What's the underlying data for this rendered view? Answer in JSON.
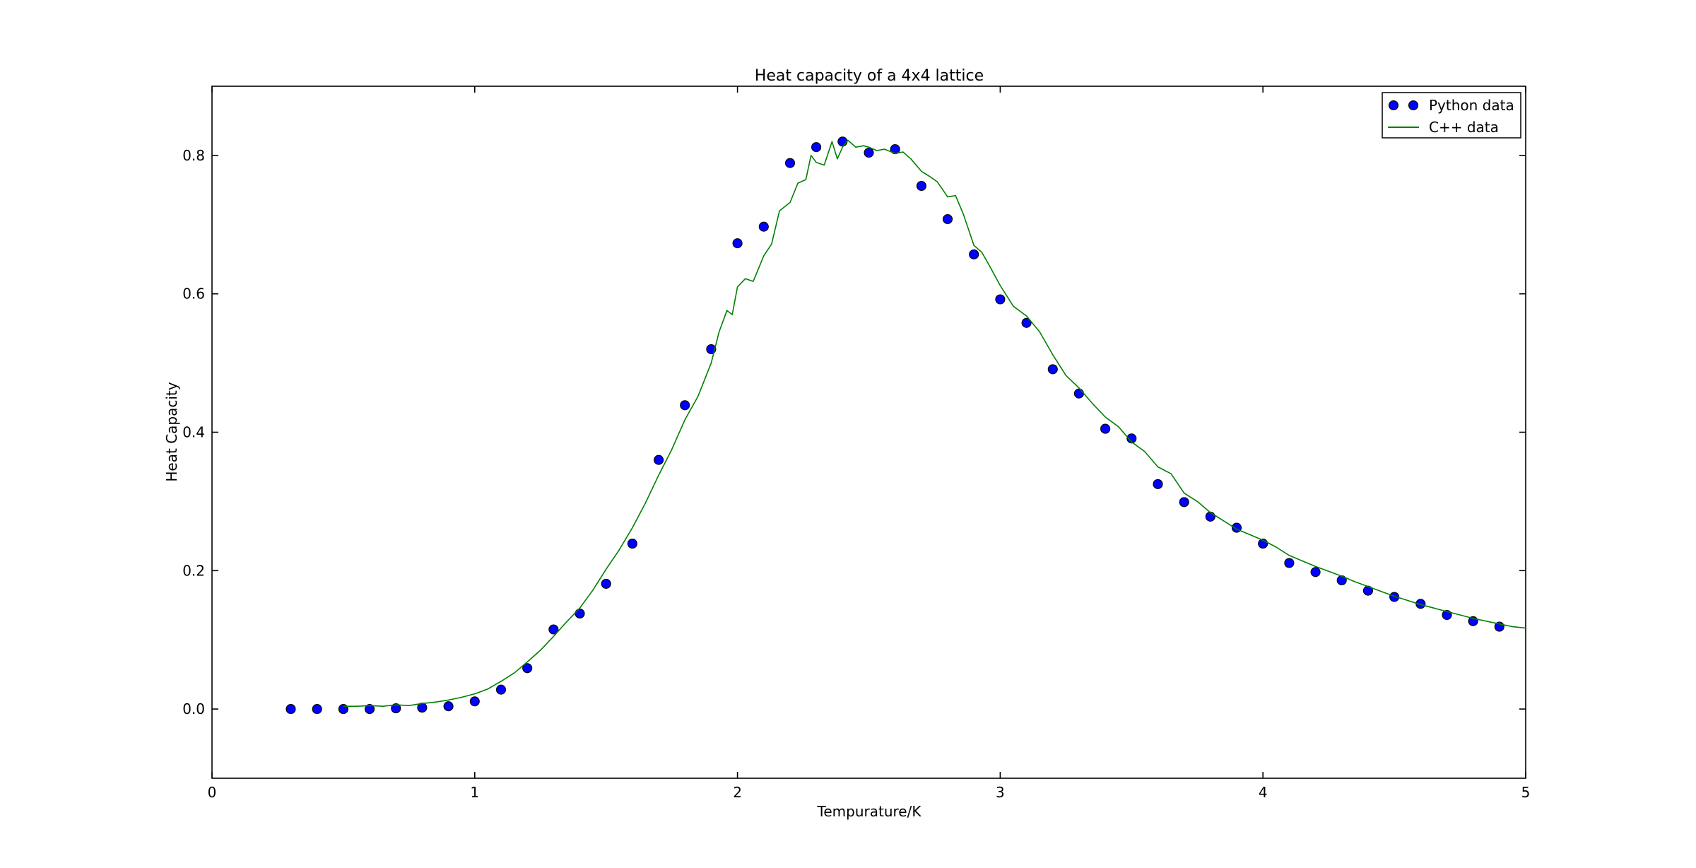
{
  "figure": {
    "background": "#ffffff",
    "spine_color": "#000000"
  },
  "chart_data": {
    "type": "scatter",
    "title": "Heat capacity of a 4x4 lattice",
    "xlabel": "Tempurature/K",
    "ylabel": "Heat Capacity",
    "xlim": [
      0,
      5
    ],
    "ylim": [
      -0.1,
      0.9
    ],
    "x_ticks": [
      0,
      1,
      2,
      3,
      4,
      5
    ],
    "x_tick_labels": [
      "0",
      "1",
      "2",
      "3",
      "4",
      "5"
    ],
    "y_ticks": [
      0.0,
      0.2,
      0.4,
      0.6,
      0.8
    ],
    "y_tick_labels": [
      "0.0",
      "0.2",
      "0.4",
      "0.6",
      "0.8"
    ],
    "grid": false,
    "legend_position": "upper right",
    "series": [
      {
        "name": "Python data",
        "type": "scatter",
        "color": "#0000ff",
        "marker": "circle",
        "marker_edge_color": "#000000",
        "points": [
          [
            0.3,
            0.0
          ],
          [
            0.4,
            0.0
          ],
          [
            0.5,
            0.0
          ],
          [
            0.6,
            0.0
          ],
          [
            0.7,
            0.001
          ],
          [
            0.8,
            0.002
          ],
          [
            0.9,
            0.004
          ],
          [
            1.0,
            0.011
          ],
          [
            1.1,
            0.028
          ],
          [
            1.2,
            0.059
          ],
          [
            1.3,
            0.115
          ],
          [
            1.4,
            0.138
          ],
          [
            1.5,
            0.181
          ],
          [
            1.6,
            0.239
          ],
          [
            1.7,
            0.36
          ],
          [
            1.8,
            0.439
          ],
          [
            1.9,
            0.52
          ],
          [
            2.0,
            0.673
          ],
          [
            2.1,
            0.697
          ],
          [
            2.2,
            0.789
          ],
          [
            2.3,
            0.812
          ],
          [
            2.4,
            0.82
          ],
          [
            2.5,
            0.804
          ],
          [
            2.6,
            0.809
          ],
          [
            2.7,
            0.756
          ],
          [
            2.8,
            0.708
          ],
          [
            2.9,
            0.657
          ],
          [
            3.0,
            0.592
          ],
          [
            3.1,
            0.558
          ],
          [
            3.2,
            0.491
          ],
          [
            3.3,
            0.456
          ],
          [
            3.4,
            0.405
          ],
          [
            3.5,
            0.391
          ],
          [
            3.6,
            0.325
          ],
          [
            3.7,
            0.299
          ],
          [
            3.8,
            0.278
          ],
          [
            3.9,
            0.262
          ],
          [
            4.0,
            0.239
          ],
          [
            4.1,
            0.211
          ],
          [
            4.2,
            0.198
          ],
          [
            4.3,
            0.186
          ],
          [
            4.4,
            0.171
          ],
          [
            4.5,
            0.162
          ],
          [
            4.6,
            0.152
          ],
          [
            4.7,
            0.136
          ],
          [
            4.8,
            0.127
          ],
          [
            4.9,
            0.119
          ]
        ]
      },
      {
        "name": "C++ data",
        "type": "line",
        "color": "#008000",
        "points": [
          [
            0.5,
            0.004
          ],
          [
            0.55,
            0.004
          ],
          [
            0.6,
            0.005
          ],
          [
            0.65,
            0.004
          ],
          [
            0.7,
            0.006
          ],
          [
            0.75,
            0.005
          ],
          [
            0.8,
            0.008
          ],
          [
            0.85,
            0.01
          ],
          [
            0.9,
            0.013
          ],
          [
            0.95,
            0.017
          ],
          [
            1.0,
            0.022
          ],
          [
            1.05,
            0.029
          ],
          [
            1.1,
            0.04
          ],
          [
            1.15,
            0.052
          ],
          [
            1.2,
            0.068
          ],
          [
            1.25,
            0.085
          ],
          [
            1.3,
            0.105
          ],
          [
            1.35,
            0.126
          ],
          [
            1.4,
            0.146
          ],
          [
            1.45,
            0.172
          ],
          [
            1.5,
            0.202
          ],
          [
            1.55,
            0.23
          ],
          [
            1.6,
            0.262
          ],
          [
            1.65,
            0.298
          ],
          [
            1.7,
            0.338
          ],
          [
            1.75,
            0.375
          ],
          [
            1.8,
            0.418
          ],
          [
            1.85,
            0.452
          ],
          [
            1.9,
            0.5
          ],
          [
            1.93,
            0.545
          ],
          [
            1.96,
            0.576
          ],
          [
            1.98,
            0.57
          ],
          [
            2.0,
            0.61
          ],
          [
            2.03,
            0.622
          ],
          [
            2.06,
            0.618
          ],
          [
            2.1,
            0.655
          ],
          [
            2.13,
            0.672
          ],
          [
            2.16,
            0.72
          ],
          [
            2.2,
            0.732
          ],
          [
            2.23,
            0.76
          ],
          [
            2.26,
            0.765
          ],
          [
            2.28,
            0.8
          ],
          [
            2.3,
            0.79
          ],
          [
            2.33,
            0.786
          ],
          [
            2.36,
            0.82
          ],
          [
            2.38,
            0.795
          ],
          [
            2.4,
            0.812
          ],
          [
            2.42,
            0.822
          ],
          [
            2.45,
            0.812
          ],
          [
            2.48,
            0.814
          ],
          [
            2.5,
            0.812
          ],
          [
            2.53,
            0.807
          ],
          [
            2.56,
            0.809
          ],
          [
            2.6,
            0.803
          ],
          [
            2.63,
            0.805
          ],
          [
            2.66,
            0.795
          ],
          [
            2.7,
            0.777
          ],
          [
            2.73,
            0.77
          ],
          [
            2.76,
            0.762
          ],
          [
            2.8,
            0.74
          ],
          [
            2.83,
            0.742
          ],
          [
            2.86,
            0.715
          ],
          [
            2.9,
            0.67
          ],
          [
            2.93,
            0.66
          ],
          [
            2.96,
            0.64
          ],
          [
            3.0,
            0.612
          ],
          [
            3.05,
            0.582
          ],
          [
            3.1,
            0.568
          ],
          [
            3.15,
            0.545
          ],
          [
            3.2,
            0.512
          ],
          [
            3.25,
            0.482
          ],
          [
            3.3,
            0.464
          ],
          [
            3.35,
            0.442
          ],
          [
            3.4,
            0.422
          ],
          [
            3.45,
            0.408
          ],
          [
            3.5,
            0.386
          ],
          [
            3.55,
            0.372
          ],
          [
            3.6,
            0.35
          ],
          [
            3.65,
            0.34
          ],
          [
            3.7,
            0.312
          ],
          [
            3.75,
            0.3
          ],
          [
            3.8,
            0.284
          ],
          [
            3.85,
            0.272
          ],
          [
            3.9,
            0.26
          ],
          [
            3.95,
            0.252
          ],
          [
            4.0,
            0.244
          ],
          [
            4.05,
            0.234
          ],
          [
            4.1,
            0.222
          ],
          [
            4.15,
            0.214
          ],
          [
            4.2,
            0.206
          ],
          [
            4.25,
            0.199
          ],
          [
            4.3,
            0.192
          ],
          [
            4.35,
            0.184
          ],
          [
            4.4,
            0.177
          ],
          [
            4.45,
            0.17
          ],
          [
            4.5,
            0.163
          ],
          [
            4.55,
            0.157
          ],
          [
            4.6,
            0.151
          ],
          [
            4.65,
            0.146
          ],
          [
            4.7,
            0.141
          ],
          [
            4.75,
            0.136
          ],
          [
            4.8,
            0.131
          ],
          [
            4.85,
            0.127
          ],
          [
            4.9,
            0.123
          ],
          [
            4.95,
            0.119
          ],
          [
            5.0,
            0.117
          ]
        ]
      }
    ]
  },
  "legend": {
    "items": [
      {
        "label": "Python data",
        "marker": "two-blue-dots",
        "color": "#0000ff"
      },
      {
        "label": "C++ data",
        "marker": "green-line",
        "color": "#008000"
      }
    ]
  }
}
